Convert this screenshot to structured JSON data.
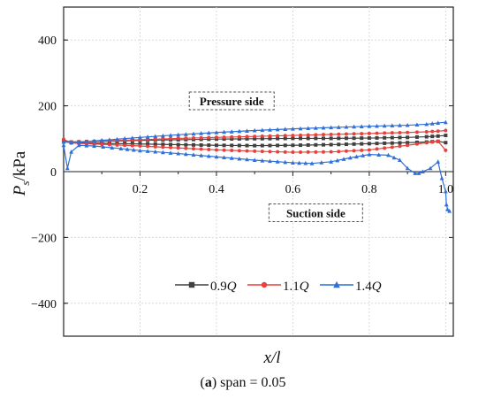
{
  "chart_data": {
    "type": "line",
    "xlabel": "x/l",
    "ylabel_main": "P",
    "ylabel_sub": "s",
    "ylabel_unit": "/kPa",
    "xlim": [
      0.0,
      1.02
    ],
    "ylim": [
      -500,
      500
    ],
    "x_ticks": [
      "0.2",
      "0.4",
      "0.6",
      "0.8",
      "1.0"
    ],
    "x_tick_values": [
      0.2,
      0.4,
      0.6,
      0.8,
      1.0
    ],
    "y_ticks": [
      "400",
      "200",
      "0",
      "−200",
      "−400"
    ],
    "y_tick_values": [
      400,
      200,
      0,
      -200,
      -400
    ],
    "annotations": [
      {
        "text": "Pressure side",
        "x": 0.44,
        "y": 215
      },
      {
        "text": "Suction side",
        "x": 0.66,
        "y": -125
      }
    ],
    "legend_placement": "bottom-center",
    "series": [
      {
        "name": "0.9Q",
        "name_num": "0.9",
        "name_var": "Q",
        "color": "#404040",
        "marker": "square",
        "pressure": {
          "x": [
            0.0,
            0.02,
            0.1,
            0.2,
            0.3,
            0.4,
            0.5,
            0.6,
            0.7,
            0.8,
            0.9,
            0.95,
            0.98,
            1.0
          ],
          "y": [
            95,
            90,
            92,
            95,
            97,
            99,
            100,
            101,
            101,
            102,
            104,
            106,
            108,
            110
          ]
        },
        "suction": {
          "x": [
            0.0,
            0.02,
            0.1,
            0.2,
            0.3,
            0.4,
            0.5,
            0.6,
            0.7,
            0.8,
            0.9,
            0.95,
            0.98,
            1.0
          ],
          "y": [
            95,
            88,
            86,
            84,
            82,
            80,
            79,
            80,
            82,
            85,
            88,
            90,
            92,
            88
          ]
        }
      },
      {
        "name": "1.1Q",
        "name_num": "1.1",
        "name_var": "Q",
        "color": "#e8413c",
        "marker": "circle",
        "pressure": {
          "x": [
            0.0,
            0.02,
            0.1,
            0.2,
            0.3,
            0.4,
            0.5,
            0.6,
            0.7,
            0.8,
            0.9,
            0.95,
            0.98,
            1.0
          ],
          "y": [
            96,
            90,
            93,
            97,
            101,
            104,
            107,
            110,
            113,
            116,
            119,
            121,
            123,
            125
          ]
        },
        "suction": {
          "x": [
            0.0,
            0.02,
            0.1,
            0.2,
            0.3,
            0.4,
            0.5,
            0.6,
            0.7,
            0.8,
            0.9,
            0.95,
            0.98,
            1.0
          ],
          "y": [
            98,
            87,
            83,
            78,
            72,
            66,
            62,
            59,
            60,
            66,
            80,
            88,
            92,
            65
          ]
        }
      },
      {
        "name": "1.4Q",
        "name_num": "1.4",
        "name_var": "Q",
        "color": "#2f6fd8",
        "marker": "triangle",
        "pressure": {
          "x": [
            0.0,
            0.02,
            0.1,
            0.2,
            0.3,
            0.4,
            0.5,
            0.6,
            0.7,
            0.8,
            0.9,
            0.95,
            0.98,
            1.0
          ],
          "y": [
            90,
            88,
            95,
            104,
            112,
            119,
            125,
            130,
            134,
            138,
            141,
            144,
            148,
            150
          ]
        },
        "suction": {
          "x": [
            0.0,
            0.01,
            0.02,
            0.04,
            0.08,
            0.15,
            0.2,
            0.3,
            0.4,
            0.5,
            0.6,
            0.65,
            0.7,
            0.75,
            0.8,
            0.85,
            0.88,
            0.9,
            0.92,
            0.93,
            0.94,
            0.96,
            0.98,
            0.99,
            1.0,
            1.002,
            1.005,
            1.01
          ],
          "y": [
            80,
            10,
            60,
            80,
            78,
            70,
            64,
            55,
            45,
            35,
            27,
            25,
            30,
            42,
            52,
            50,
            35,
            10,
            -5,
            -5,
            0,
            10,
            30,
            -20,
            -60,
            -100,
            -115,
            -120
          ]
        }
      }
    ]
  },
  "caption": {
    "label": "(a)",
    "label_letter": "a",
    "text": " span = 0.05"
  }
}
